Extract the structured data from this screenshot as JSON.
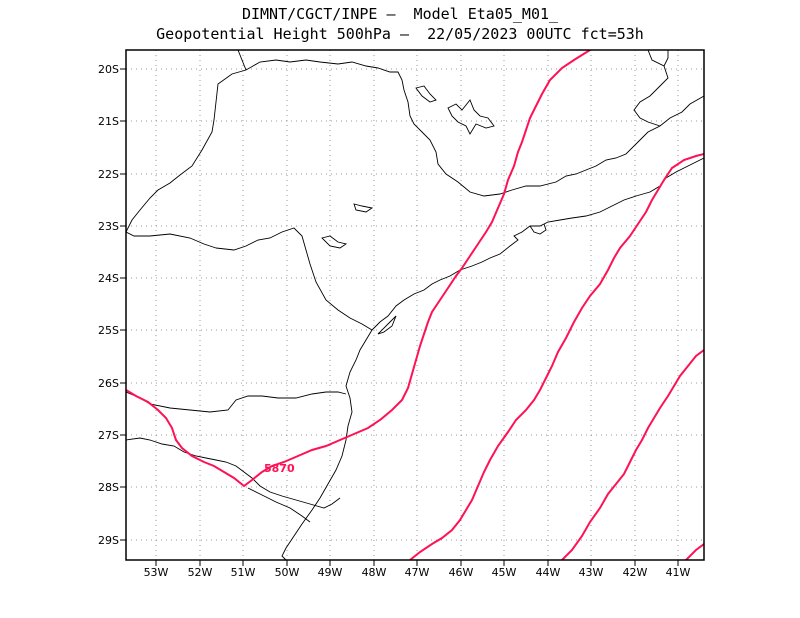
{
  "title": {
    "line1": "DIMNT/CGCT/INPE —  Model Eta05_M01_",
    "line2": "Geopotential Height 500hPa —  22/05/2023 00UTC fct=53h"
  },
  "axes": {
    "lat_labels": [
      "20S",
      "21S",
      "22S",
      "23S",
      "24S",
      "25S",
      "26S",
      "27S",
      "28S",
      "29S"
    ],
    "lon_labels": [
      "53W",
      "52W",
      "51W",
      "50W",
      "49W",
      "48W",
      "47W",
      "46W",
      "45W",
      "44W",
      "43W",
      "42W",
      "41W"
    ],
    "lon_range": [
      -53.65,
      -40.5
    ],
    "lat_range": [
      -29.4,
      -19.7
    ]
  },
  "contours": {
    "color": "#ff1155",
    "label": "5870"
  }
}
